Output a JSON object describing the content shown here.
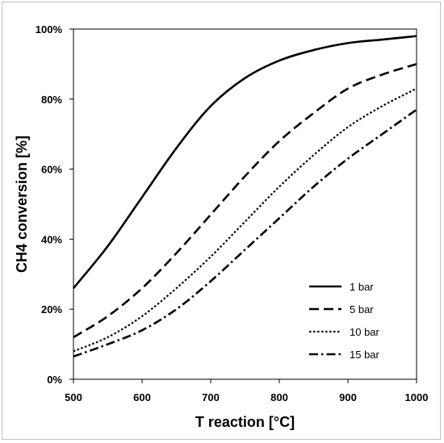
{
  "chart_data": {
    "type": "line",
    "title": "",
    "xlabel": "T reaction [°C]",
    "ylabel": "CH4 conversion [%]",
    "xlim": [
      500,
      1000
    ],
    "ylim": [
      0,
      100
    ],
    "x_ticks": [
      "500",
      "600",
      "700",
      "800",
      "900",
      "1000"
    ],
    "y_ticks": [
      "0%",
      "20%",
      "40%",
      "60%",
      "80%",
      "100%"
    ],
    "grid": false,
    "legend_position": "bottom-right",
    "x": [
      500,
      550,
      600,
      650,
      700,
      750,
      800,
      850,
      900,
      950,
      1000
    ],
    "series": [
      {
        "name": "1 bar",
        "style": "solid",
        "values": [
          26,
          38,
          52,
          66,
          78,
          86,
          91,
          94,
          96,
          97,
          98
        ]
      },
      {
        "name": "5 bar",
        "style": "dashed",
        "values": [
          12,
          18,
          26,
          36,
          47,
          58,
          68,
          76,
          83,
          87,
          90
        ]
      },
      {
        "name": "10 bar",
        "style": "dotted",
        "values": [
          8,
          12,
          18,
          26,
          35,
          45,
          55,
          64,
          72,
          78,
          83
        ]
      },
      {
        "name": "15 bar",
        "style": "dashdot",
        "values": [
          6.5,
          10,
          14,
          20,
          28,
          37,
          46,
          55,
          63,
          70,
          77
        ]
      }
    ],
    "colors": {
      "line": "#000000",
      "frame": "#000000"
    }
  }
}
